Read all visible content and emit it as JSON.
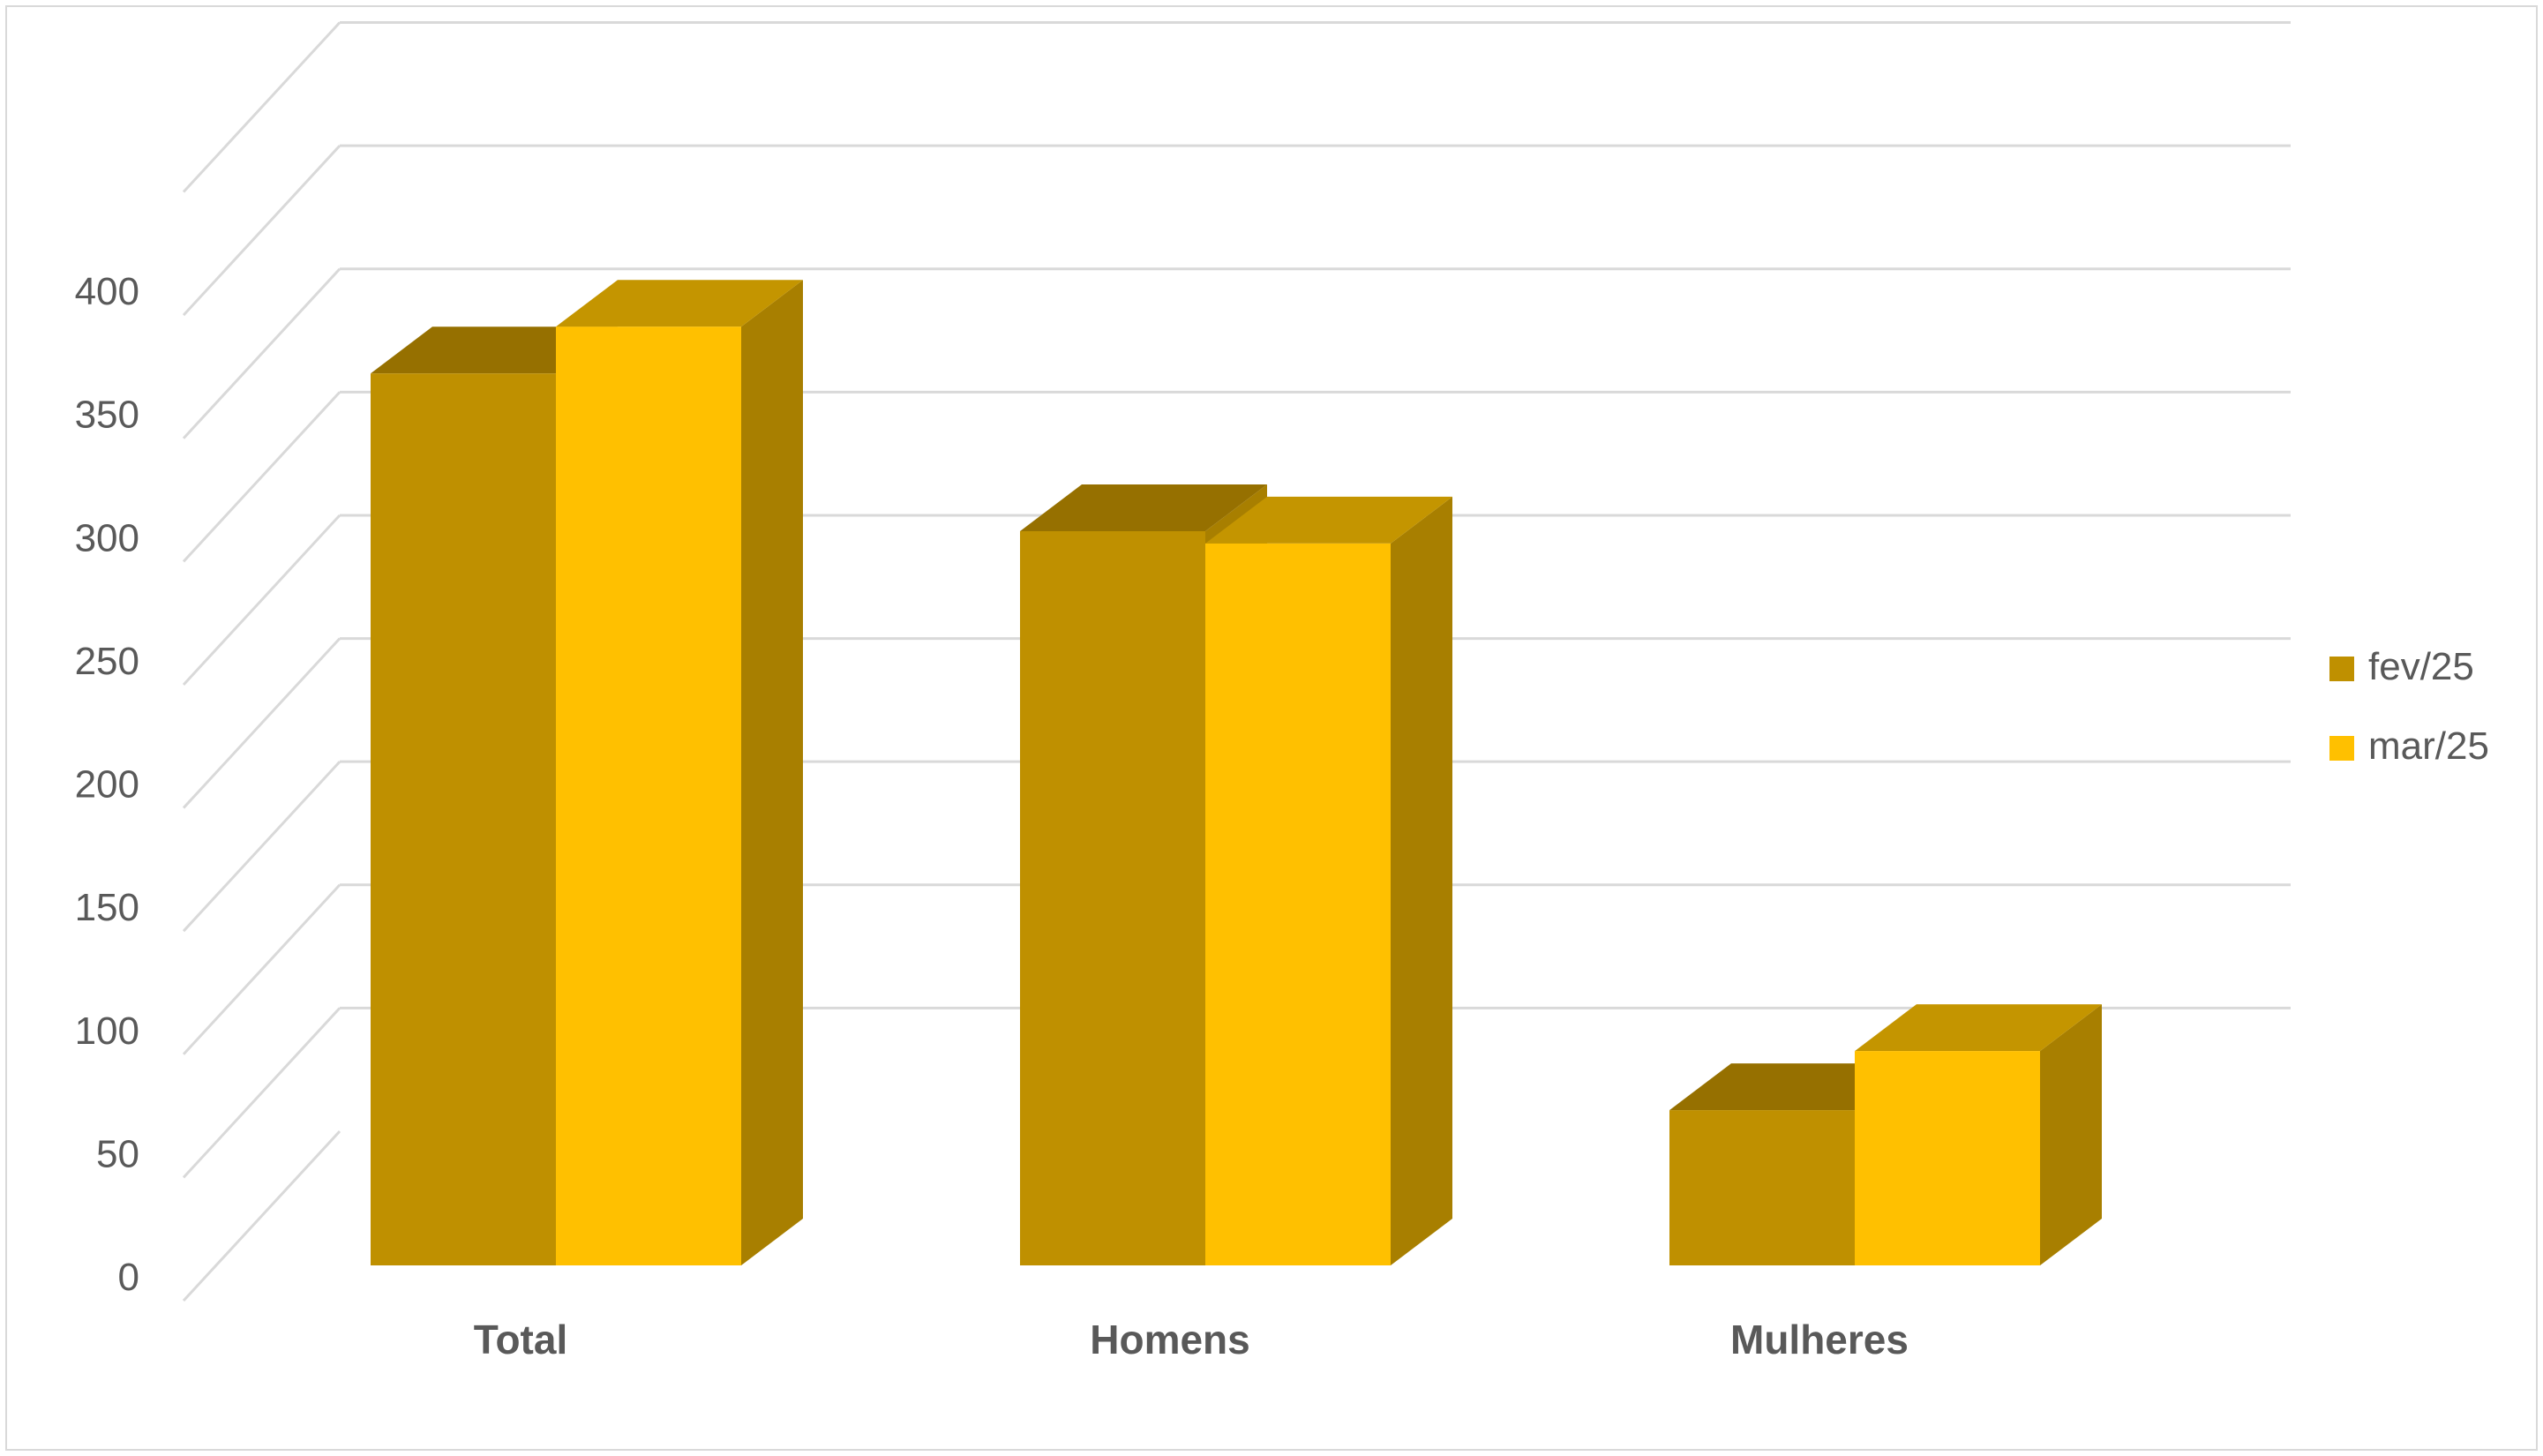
{
  "chart_data": {
    "type": "bar",
    "categories": [
      "Total",
      "Homens",
      "Mulheres"
    ],
    "series": [
      {
        "name": "fev/25",
        "values": [
          362,
          298,
          63
        ],
        "color": "#BF9000",
        "top_color": "#967000",
        "side_color": "#A87F00"
      },
      {
        "name": "mar/25",
        "values": [
          381,
          293,
          87
        ],
        "color": "#FFC000",
        "top_color": "#C49500",
        "side_color": "#A87F00"
      }
    ],
    "y_ticks": [
      "0",
      "50",
      "100",
      "150",
      "200",
      "250",
      "300",
      "350",
      "400"
    ],
    "ylim": [
      0,
      400
    ],
    "grid": true,
    "legend_position": "right",
    "gridline_color": "#d9d9d9"
  }
}
